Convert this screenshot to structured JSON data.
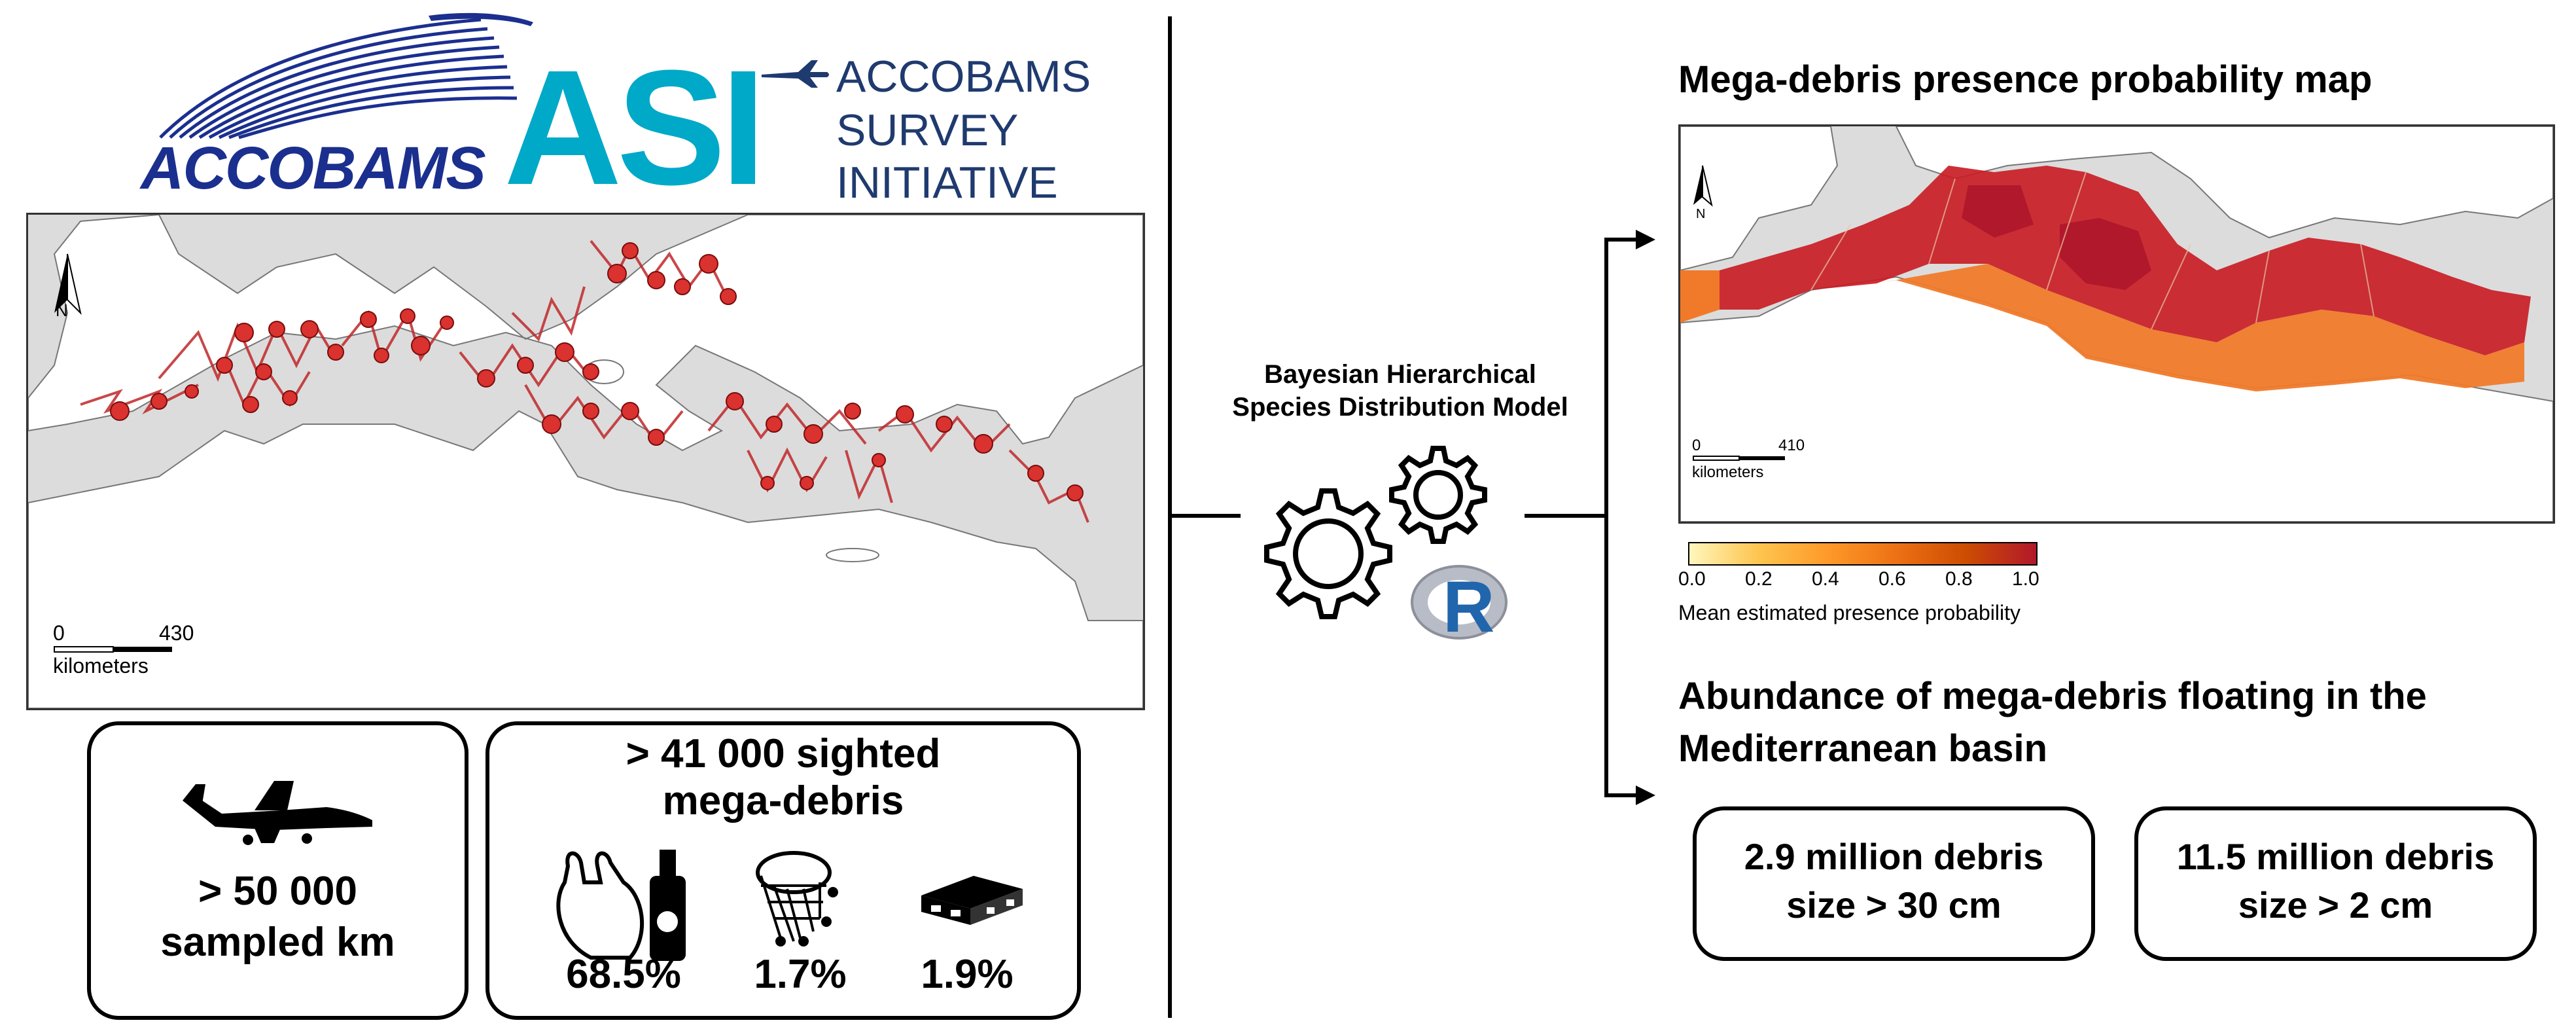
{
  "logos": {
    "accobams": "ACCOBAMS",
    "asi_letters": "ASI",
    "asi_line1": "ACCOBAMS",
    "asi_line2": "SURVEY",
    "asi_line3": "INITIATIVE",
    "colors": {
      "accobams_blue": "#1b2f8f",
      "asi_teal": "#00a9c7",
      "asi_navy": "#1f3a6e"
    }
  },
  "left_map": {
    "scale_start": "0",
    "scale_end": "430",
    "scale_unit": "kilometers",
    "north_label": "N",
    "colors": {
      "land": "#ffffff",
      "sea_bg": "#dcdcdc",
      "transect": "#c0282a",
      "sighting": "#d9322f"
    }
  },
  "stats": {
    "sampled_km": "> 50 000\nsampled km",
    "sighted_line1": "> 41 000 sighted",
    "sighted_line2": "mega-debris",
    "pct_plastic": "68.5%",
    "pct_fishing": "1.7%",
    "pct_wood": "1.9%",
    "icons": [
      "airplane-icon",
      "plastic-bag-bottle-icon",
      "fishing-net-icon",
      "pallet-icon"
    ]
  },
  "model": {
    "line1": "Bayesian Hierarchical",
    "line2": "Species Distribution Model",
    "r_letter": "R"
  },
  "right": {
    "map_title": "Mega-debris presence probability map",
    "scale_start": "0",
    "scale_end": "410",
    "scale_unit": "kilometers",
    "north_label": "N",
    "legend_ticks": [
      "0.0",
      "0.2",
      "0.4",
      "0.6",
      "0.8",
      "1.0"
    ],
    "legend_title": "Mean estimated presence probability",
    "legend_colors": [
      "#fff7bc",
      "#fec44f",
      "#fe9929",
      "#ec7014",
      "#cc4c02",
      "#b2182b"
    ],
    "abundance_title_line1": "Abundance of mega-debris floating in the",
    "abundance_title_line2": "Mediterranean basin",
    "box1_line1": "2.9 million debris",
    "box1_line2": "size > 30 cm",
    "box2_line1": "11.5 million debris",
    "box2_line2": "size > 2 cm"
  }
}
